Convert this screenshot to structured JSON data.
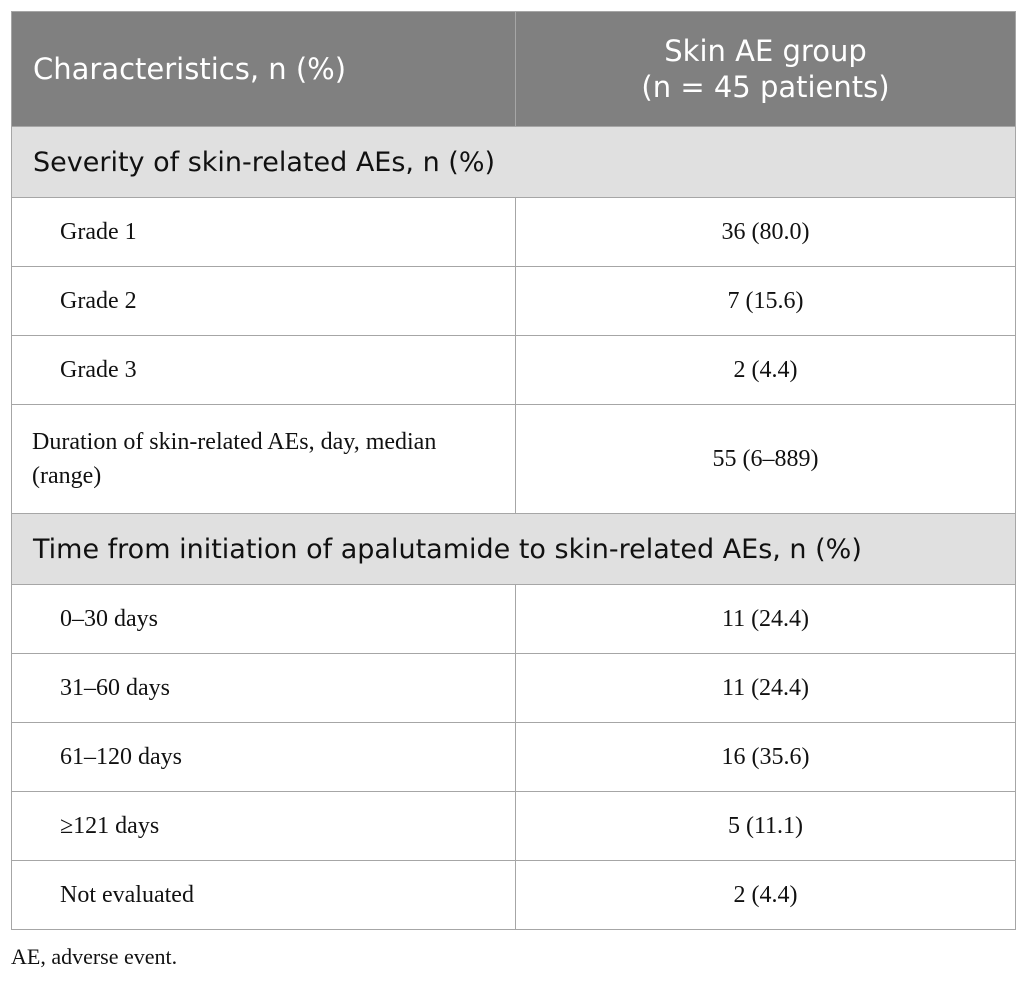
{
  "table": {
    "header": {
      "characteristics": "Characteristics, n (%)",
      "group": [
        "Skin AE group",
        "(n = 45 patients)"
      ]
    },
    "sections": [
      {
        "title": "Severity of skin-related AEs, n (%)",
        "rows": [
          [
            "Grade 1",
            "36 (80.0)"
          ],
          [
            "Grade 2",
            "7 (15.6)"
          ],
          [
            "Grade 3",
            "2 (4.4)"
          ]
        ]
      },
      {
        "title": "Time from initiation of apalutamide to skin-related AEs, n (%)",
        "rows": [
          [
            "0–30 days",
            "11 (24.4)"
          ],
          [
            "31–60 days",
            "11 (24.4)"
          ],
          [
            "61–120 days",
            "16 (35.6)"
          ],
          [
            "≥121 days",
            "5 (11.1)"
          ],
          [
            "Not evaluated",
            "2 (4.4)"
          ]
        ]
      }
    ],
    "duration": [
      "Duration of skin-related AEs, day, median (range)",
      "55 (6–889)"
    ]
  },
  "footnote": "AE, adverse event."
}
